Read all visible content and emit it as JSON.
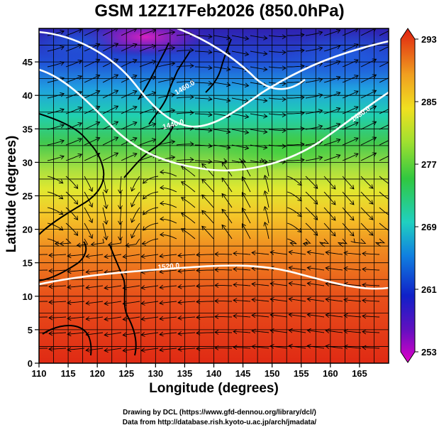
{
  "title": "GSM 12Z17Feb2026 (850.0hPa)",
  "credit_line1": "Drawing by DCL (https://www.gfd-dennou.org/library/dcl/)",
  "credit_line2": "Data from http://database.rish.kyoto-u.ac.jp/arch/jmadata/",
  "chart_data": {
    "type": "heatmap",
    "title": "GSM 12Z17Feb2026 (850.0hPa)",
    "xlabel": "Longitude (degrees)",
    "ylabel": "Latitude  (degrees)",
    "xlim": [
      110,
      170
    ],
    "ylim": [
      0,
      50
    ],
    "x_ticks": [
      110,
      115,
      120,
      125,
      130,
      135,
      140,
      145,
      150,
      155,
      160,
      165
    ],
    "y_ticks": [
      0,
      5,
      10,
      15,
      20,
      25,
      30,
      35,
      40,
      45
    ],
    "colorbar": {
      "min": 253,
      "max": 293,
      "ticks": [
        253,
        261,
        269,
        277,
        285,
        293
      ]
    },
    "contour_labels": [
      "1460.0",
      "1440.0",
      "1480.0",
      "1520.0"
    ],
    "colors": {
      "cold": "#e000c8",
      "cool": "#1030d0",
      "mild": "#20c060",
      "warm": "#f0e020",
      "hot": "#e02010"
    }
  }
}
